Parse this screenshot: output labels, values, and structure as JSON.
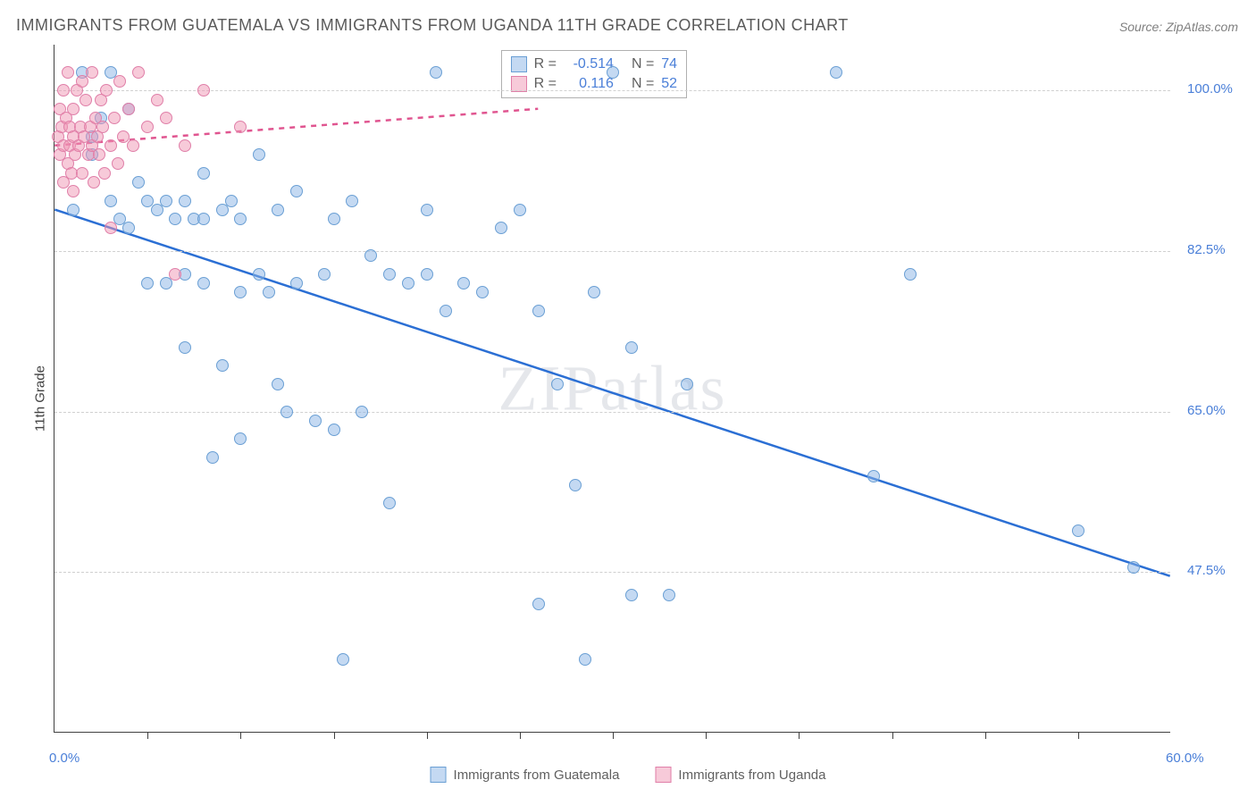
{
  "title": "IMMIGRANTS FROM GUATEMALA VS IMMIGRANTS FROM UGANDA 11TH GRADE CORRELATION CHART",
  "source": "Source: ZipAtlas.com",
  "ylabel": "11th Grade",
  "watermark": "ZIPatlas",
  "chart": {
    "type": "scatter",
    "xlim": [
      0,
      60
    ],
    "ylim": [
      30,
      105
    ],
    "yticks": [
      {
        "value": 47.5,
        "label": "47.5%"
      },
      {
        "value": 65.0,
        "label": "65.0%"
      },
      {
        "value": 82.5,
        "label": "82.5%"
      },
      {
        "value": 100.0,
        "label": "100.0%"
      }
    ],
    "xticks_minor": [
      5,
      10,
      15,
      20,
      25,
      30,
      35,
      40,
      45,
      50,
      55
    ],
    "xtick_labels": [
      {
        "value": 0,
        "label": "0.0%"
      },
      {
        "value": 60,
        "label": "60.0%"
      }
    ],
    "grid_color": "#d0d0d0",
    "background_color": "#ffffff",
    "axis_color": "#404040",
    "tick_label_color": "#4a7fd8",
    "marker_radius": 7,
    "series": [
      {
        "name": "Immigrants from Guatemala",
        "fill": "rgba(138,180,230,0.5)",
        "stroke": "#6a9fd4",
        "trend_color": "#2b6fd4",
        "trend_dash": "none",
        "trend": {
          "x1": 0,
          "y1": 87,
          "x2": 60,
          "y2": 47
        },
        "R": -0.514,
        "N": 74,
        "points": [
          [
            1,
            87
          ],
          [
            1.5,
            102
          ],
          [
            2,
            93
          ],
          [
            2,
            95
          ],
          [
            2.5,
            97
          ],
          [
            3,
            88
          ],
          [
            3,
            102
          ],
          [
            3.5,
            86
          ],
          [
            4,
            85
          ],
          [
            4,
            98
          ],
          [
            4.5,
            90
          ],
          [
            5,
            88
          ],
          [
            5,
            79
          ],
          [
            5.5,
            87
          ],
          [
            6,
            88
          ],
          [
            6,
            79
          ],
          [
            6.5,
            86
          ],
          [
            7,
            88
          ],
          [
            7,
            80
          ],
          [
            7,
            72
          ],
          [
            7.5,
            86
          ],
          [
            8,
            91
          ],
          [
            8,
            86
          ],
          [
            8,
            79
          ],
          [
            8.5,
            60
          ],
          [
            9,
            87
          ],
          [
            9,
            70
          ],
          [
            9.5,
            88
          ],
          [
            10,
            78
          ],
          [
            10,
            62
          ],
          [
            10,
            86
          ],
          [
            11,
            93
          ],
          [
            11,
            80
          ],
          [
            11.5,
            78
          ],
          [
            12,
            87
          ],
          [
            12,
            68
          ],
          [
            12.5,
            65
          ],
          [
            13,
            79
          ],
          [
            13,
            89
          ],
          [
            14,
            64
          ],
          [
            14.5,
            80
          ],
          [
            15,
            86
          ],
          [
            15,
            63
          ],
          [
            15.5,
            38
          ],
          [
            16,
            88
          ],
          [
            16.5,
            65
          ],
          [
            17,
            82
          ],
          [
            18,
            80
          ],
          [
            18,
            55
          ],
          [
            19,
            79
          ],
          [
            20,
            80
          ],
          [
            20,
            87
          ],
          [
            20.5,
            102
          ],
          [
            21,
            76
          ],
          [
            22,
            79
          ],
          [
            23,
            78
          ],
          [
            24,
            85
          ],
          [
            25,
            87
          ],
          [
            26,
            44
          ],
          [
            26,
            76
          ],
          [
            27,
            68
          ],
          [
            28,
            57
          ],
          [
            28.5,
            38
          ],
          [
            29,
            78
          ],
          [
            30,
            102
          ],
          [
            31,
            72
          ],
          [
            31,
            45
          ],
          [
            33,
            45
          ],
          [
            34,
            68
          ],
          [
            42,
            102
          ],
          [
            44,
            58
          ],
          [
            46,
            80
          ],
          [
            55,
            52
          ],
          [
            58,
            48
          ]
        ]
      },
      {
        "name": "Immigrants from Uganda",
        "fill": "rgba(240,150,180,0.5)",
        "stroke": "#e07fa8",
        "trend_color": "#e05590",
        "trend_dash": "6,6",
        "trend": {
          "x1": 0,
          "y1": 94,
          "x2": 26,
          "y2": 98
        },
        "R": 0.116,
        "N": 52,
        "points": [
          [
            0.2,
            95
          ],
          [
            0.3,
            93
          ],
          [
            0.3,
            98
          ],
          [
            0.4,
            96
          ],
          [
            0.5,
            94
          ],
          [
            0.5,
            100
          ],
          [
            0.5,
            90
          ],
          [
            0.6,
            97
          ],
          [
            0.7,
            92
          ],
          [
            0.7,
            102
          ],
          [
            0.8,
            94
          ],
          [
            0.8,
            96
          ],
          [
            0.9,
            91
          ],
          [
            1,
            95
          ],
          [
            1,
            98
          ],
          [
            1,
            89
          ],
          [
            1.1,
            93
          ],
          [
            1.2,
            100
          ],
          [
            1.3,
            94
          ],
          [
            1.4,
            96
          ],
          [
            1.5,
            91
          ],
          [
            1.5,
            101
          ],
          [
            1.6,
            95
          ],
          [
            1.7,
            99
          ],
          [
            1.8,
            93
          ],
          [
            1.9,
            96
          ],
          [
            2,
            94
          ],
          [
            2,
            102
          ],
          [
            2.1,
            90
          ],
          [
            2.2,
            97
          ],
          [
            2.3,
            95
          ],
          [
            2.4,
            93
          ],
          [
            2.5,
            99
          ],
          [
            2.6,
            96
          ],
          [
            2.7,
            91
          ],
          [
            2.8,
            100
          ],
          [
            3,
            94
          ],
          [
            3,
            85
          ],
          [
            3.2,
            97
          ],
          [
            3.4,
            92
          ],
          [
            3.5,
            101
          ],
          [
            3.7,
            95
          ],
          [
            4,
            98
          ],
          [
            4.2,
            94
          ],
          [
            4.5,
            102
          ],
          [
            5,
            96
          ],
          [
            5.5,
            99
          ],
          [
            6,
            97
          ],
          [
            6.5,
            80
          ],
          [
            7,
            94
          ],
          [
            8,
            100
          ],
          [
            10,
            96
          ]
        ]
      }
    ]
  },
  "stats_box": {
    "rows": [
      {
        "swatch_fill": "rgba(138,180,230,0.5)",
        "swatch_stroke": "#6a9fd4",
        "R_label": "R =",
        "R": "-0.514",
        "N_label": "N =",
        "N": "74"
      },
      {
        "swatch_fill": "rgba(240,150,180,0.5)",
        "swatch_stroke": "#e07fa8",
        "R_label": "R =",
        "R": "0.116",
        "N_label": "N =",
        "N": "52"
      }
    ]
  },
  "legend": [
    {
      "swatch_fill": "rgba(138,180,230,0.5)",
      "swatch_stroke": "#6a9fd4",
      "label": "Immigrants from Guatemala"
    },
    {
      "swatch_fill": "rgba(240,150,180,0.5)",
      "swatch_stroke": "#e07fa8",
      "label": "Immigrants from Uganda"
    }
  ]
}
